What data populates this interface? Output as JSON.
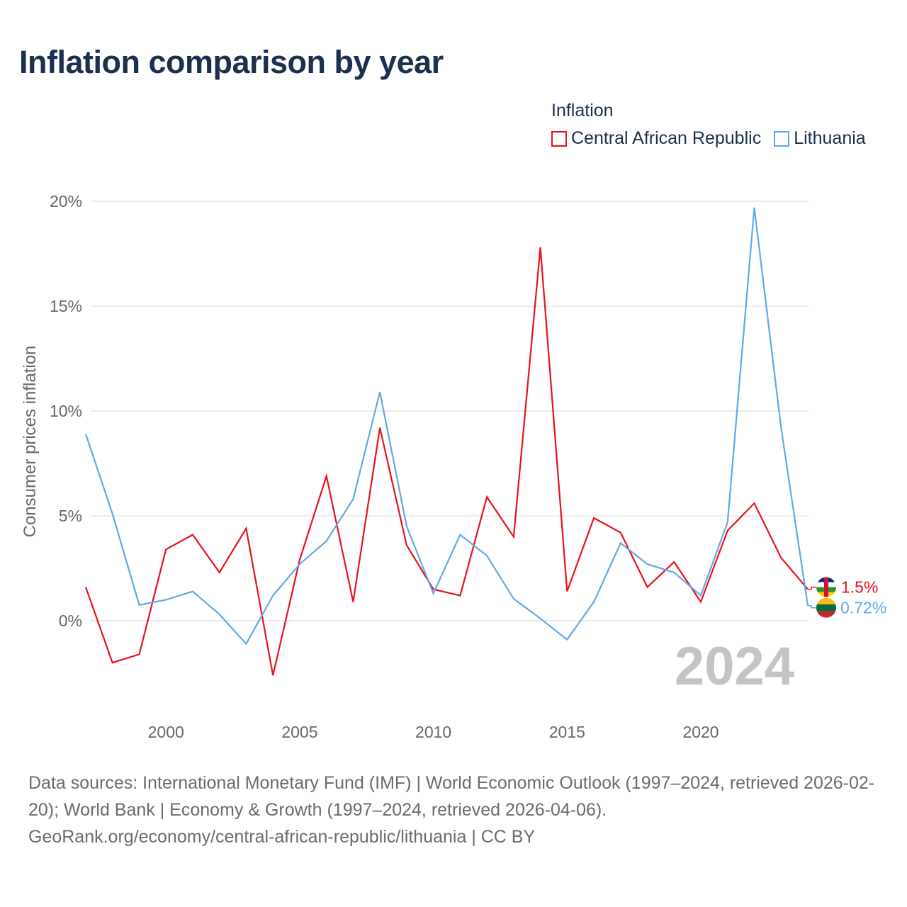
{
  "title": "Inflation comparison by year",
  "legend": {
    "title": "Inflation",
    "items": [
      {
        "name": "Central African Republic",
        "color": "#e8111b"
      },
      {
        "name": "Lithuania",
        "color": "#61a8e8"
      }
    ]
  },
  "chart_data": {
    "type": "line",
    "title": "Inflation comparison by year",
    "xlabel": "",
    "ylabel": "Consumer prices inflation",
    "xlim": [
      1997,
      2024
    ],
    "ylim": [
      -3.5,
      20.5
    ],
    "yticks": [
      0,
      5,
      10,
      15,
      20
    ],
    "ytick_labels": [
      "0%",
      "5%",
      "10%",
      "15%",
      "20%"
    ],
    "xticks": [
      2000,
      2005,
      2010,
      2015,
      2020
    ],
    "xtick_labels": [
      "2000",
      "2005",
      "2010",
      "2015",
      "2020"
    ],
    "grid": true,
    "year_watermark": "2024",
    "x": [
      1997,
      1998,
      1999,
      2000,
      2001,
      2002,
      2003,
      2004,
      2005,
      2006,
      2007,
      2008,
      2009,
      2010,
      2011,
      2012,
      2013,
      2014,
      2015,
      2016,
      2017,
      2018,
      2019,
      2020,
      2021,
      2022,
      2023,
      2024
    ],
    "series": [
      {
        "name": "Central African Republic",
        "color": "#e8111b",
        "values": [
          1.6,
          -2.0,
          -1.6,
          3.4,
          4.1,
          2.3,
          4.4,
          -2.6,
          2.9,
          6.9,
          0.9,
          9.2,
          3.6,
          1.5,
          1.2,
          5.9,
          4.0,
          17.8,
          1.4,
          4.9,
          4.2,
          1.6,
          2.8,
          0.9,
          4.3,
          5.6,
          3.0,
          1.5
        ],
        "end_label": "1.5%"
      },
      {
        "name": "Lithuania",
        "color": "#61a8e8",
        "values": [
          8.9,
          5.1,
          0.75,
          1.0,
          1.4,
          0.3,
          -1.1,
          1.2,
          2.7,
          3.8,
          5.8,
          10.9,
          4.5,
          1.3,
          4.1,
          3.1,
          1.05,
          0.1,
          -0.9,
          0.9,
          3.7,
          2.7,
          2.3,
          1.2,
          4.7,
          19.7,
          9.2,
          0.72
        ],
        "end_label": "0.72%"
      }
    ]
  },
  "source": {
    "line1": "Data sources: International Monetary Fund (IMF) | World Economic Outlook (1997–2024, retrieved 2026-02-20); World Bank | Economy & Growth (1997–2024, retrieved 2026-04-06).",
    "line2": "GeoRank.org/economy/central-african-republic/lithuania | CC BY"
  }
}
